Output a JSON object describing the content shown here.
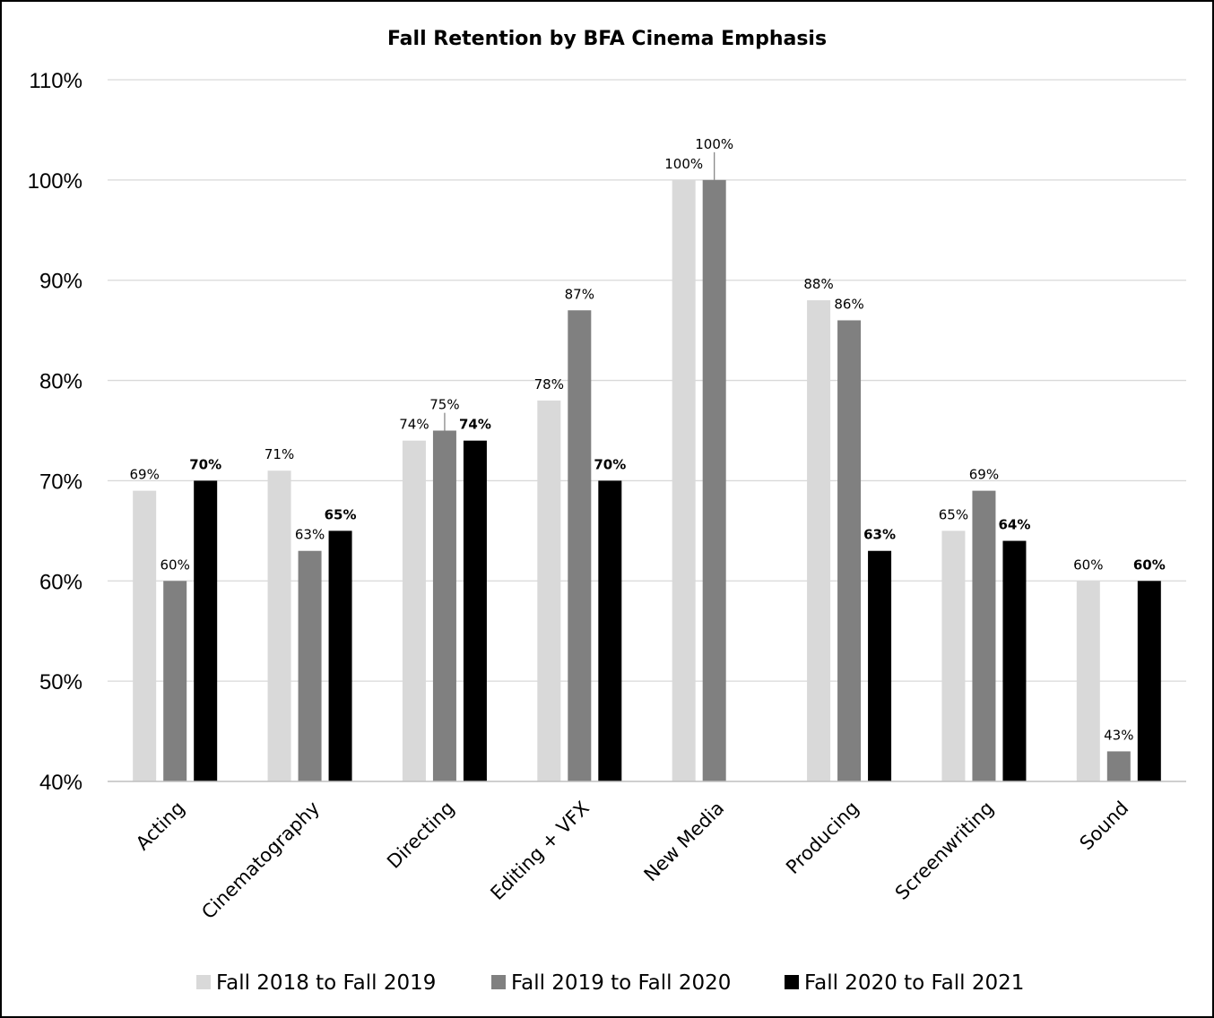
{
  "chart_data": {
    "type": "bar",
    "title": "Fall Retention by BFA Cinema Emphasis",
    "categories": [
      "Acting",
      "Cinematography",
      "Directing",
      "Editing + VFX",
      "New Media",
      "Producing",
      "Screenwriting",
      "Sound"
    ],
    "series": [
      {
        "name": "Fall 2018 to Fall 2019",
        "color": "#d9d9d9",
        "values": [
          69,
          71,
          74,
          78,
          100,
          88,
          65,
          60
        ],
        "labels": [
          "69%",
          "71%",
          "74%",
          "78%",
          "100%",
          "88%",
          "65%",
          "60%"
        ],
        "bold_labels": false
      },
      {
        "name": "Fall 2019 to Fall 2020",
        "color": "#808080",
        "values": [
          60,
          63,
          75,
          87,
          100,
          86,
          69,
          43
        ],
        "labels": [
          "60%",
          "63%",
          "75%",
          "87%",
          "100%",
          "86%",
          "69%",
          "43%"
        ],
        "bold_labels": false
      },
      {
        "name": "Fall 2020 to Fall 2021",
        "color": "#000000",
        "values": [
          70,
          65,
          74,
          70,
          null,
          63,
          64,
          60
        ],
        "labels": [
          "70%",
          "65%",
          "74%",
          "70%",
          null,
          "63%",
          "64%",
          "60%"
        ],
        "bold_labels": true
      }
    ],
    "ylim": [
      40,
      110
    ],
    "yticks": [
      40,
      50,
      60,
      70,
      80,
      90,
      100,
      110
    ],
    "ytick_labels": [
      "40%",
      "50%",
      "60%",
      "70%",
      "80%",
      "90%",
      "100%",
      "110%"
    ],
    "xlabel": "",
    "ylabel": "",
    "grid": true,
    "legend_position": "bottom"
  }
}
